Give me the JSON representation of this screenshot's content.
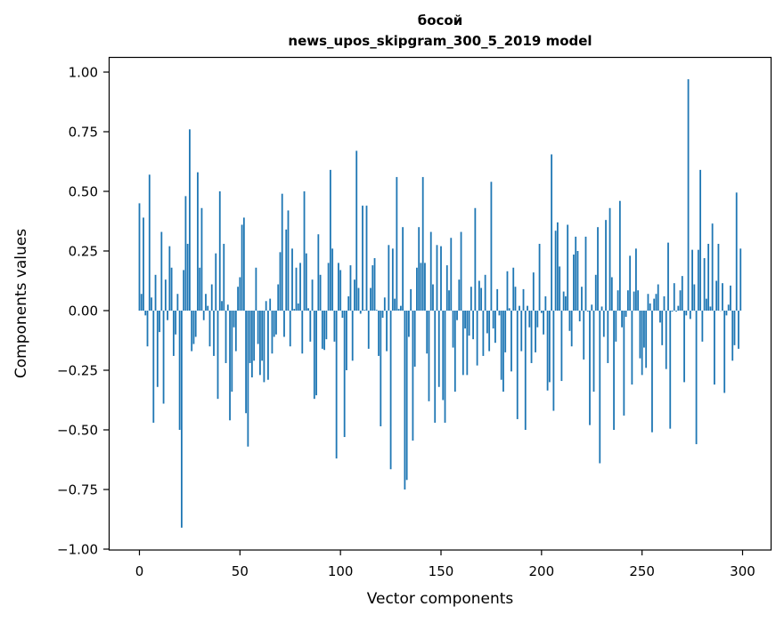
{
  "chart_data": {
    "type": "bar",
    "title": "босой",
    "subtitle": "news_upos_skipgram_300_5_2019 model",
    "xlabel": "Vector components",
    "ylabel": "Components values",
    "xlim": [
      -15,
      315
    ],
    "ylim": [
      -1.01,
      1.06
    ],
    "xticks": [
      0,
      50,
      100,
      150,
      200,
      250,
      300
    ],
    "xtick_labels": [
      "0",
      "50",
      "100",
      "150",
      "200",
      "250",
      "300"
    ],
    "yticks": [
      -1.0,
      -0.75,
      -0.5,
      -0.25,
      0.0,
      0.25,
      0.5,
      0.75,
      1.0
    ],
    "ytick_labels": [
      "−1.00",
      "−0.75",
      "−0.50",
      "−0.25",
      "0.00",
      "0.25",
      "0.50",
      "0.75",
      "1.00"
    ],
    "grid": false,
    "bar_color": "#1f77b4",
    "values": [
      0.45,
      0.07,
      0.39,
      -0.02,
      -0.15,
      0.57,
      0.055,
      -0.47,
      0.15,
      -0.32,
      -0.09,
      0.33,
      -0.39,
      0.13,
      -0.04,
      0.27,
      0.18,
      -0.19,
      -0.1,
      0.07,
      -0.5,
      -0.91,
      0.17,
      0.48,
      0.28,
      0.76,
      -0.17,
      -0.14,
      -0.11,
      0.58,
      0.18,
      0.43,
      -0.04,
      0.07,
      0.02,
      -0.15,
      0.11,
      -0.19,
      0.24,
      -0.37,
      0.5,
      0.04,
      0.28,
      -0.22,
      0.025,
      -0.46,
      -0.34,
      -0.07,
      -0.17,
      0.1,
      0.14,
      0.36,
      0.39,
      -0.43,
      -0.57,
      -0.22,
      -0.28,
      -0.21,
      0.18,
      -0.14,
      -0.27,
      -0.21,
      -0.3,
      0.04,
      -0.29,
      0.05,
      -0.18,
      -0.11,
      -0.1,
      0.11,
      0.245,
      0.49,
      -0.11,
      0.34,
      0.42,
      -0.15,
      0.26,
      0.007,
      0.18,
      0.03,
      0.2,
      -0.18,
      0.5,
      0.24,
      0.01,
      -0.13,
      0.13,
      -0.37,
      -0.355,
      0.32,
      0.15,
      -0.16,
      -0.165,
      -0.12,
      0.2,
      0.59,
      0.26,
      -0.13,
      -0.62,
      0.2,
      0.17,
      -0.03,
      -0.53,
      -0.25,
      0.06,
      0.19,
      -0.21,
      0.13,
      0.67,
      0.095,
      -0.013,
      0.44,
      0.003,
      0.44,
      -0.16,
      0.095,
      0.19,
      0.22,
      0.003,
      -0.19,
      -0.485,
      -0.03,
      0.055,
      -0.17,
      0.275,
      -0.665,
      0.26,
      0.05,
      0.56,
      0.007,
      0.02,
      0.35,
      -0.75,
      -0.71,
      -0.11,
      0.09,
      -0.545,
      -0.235,
      0.18,
      0.35,
      0.2,
      0.56,
      0.2,
      -0.18,
      -0.38,
      0.33,
      0.11,
      -0.47,
      0.275,
      -0.32,
      0.27,
      -0.375,
      -0.47,
      0.19,
      0.085,
      0.305,
      -0.155,
      -0.34,
      -0.04,
      0.13,
      0.33,
      -0.27,
      -0.075,
      -0.27,
      -0.105,
      0.1,
      -0.12,
      0.43,
      -0.23,
      0.125,
      0.095,
      -0.19,
      0.15,
      -0.095,
      -0.17,
      0.54,
      -0.075,
      -0.135,
      0.09,
      -0.02,
      -0.29,
      -0.34,
      -0.175,
      0.165,
      0.01,
      -0.255,
      0.18,
      0.1,
      -0.455,
      0.02,
      -0.17,
      0.09,
      -0.5,
      0.02,
      -0.07,
      -0.22,
      0.16,
      -0.175,
      -0.07,
      0.28,
      -0.01,
      -0.1,
      0.06,
      -0.335,
      -0.3,
      0.655,
      -0.42,
      0.335,
      0.37,
      0.185,
      -0.295,
      0.08,
      0.06,
      0.36,
      -0.085,
      -0.15,
      0.235,
      0.31,
      0.25,
      -0.045,
      0.1,
      -0.205,
      0.31,
      -0.004,
      -0.48,
      0.025,
      -0.34,
      0.15,
      0.35,
      -0.64,
      0.017,
      -0.11,
      0.38,
      -0.22,
      0.43,
      0.14,
      -0.5,
      -0.13,
      0.085,
      0.46,
      -0.07,
      -0.44,
      -0.026,
      0.085,
      0.23,
      -0.31,
      0.08,
      0.26,
      0.085,
      -0.2,
      -0.27,
      -0.155,
      -0.24,
      0.07,
      0.03,
      -0.51,
      0.05,
      0.07,
      0.11,
      -0.05,
      -0.145,
      0.06,
      -0.245,
      0.285,
      -0.495,
      -0.004,
      0.115,
      -0.004,
      0.02,
      0.085,
      0.145,
      -0.3,
      -0.02,
      0.97,
      -0.035,
      0.255,
      0.11,
      -0.56,
      0.255,
      0.59,
      -0.13,
      0.22,
      0.05,
      0.28,
      0.017,
      0.365,
      -0.31,
      0.125,
      0.28,
      0.0,
      0.115,
      -0.345,
      -0.02,
      0.025,
      0.105,
      -0.21,
      -0.145,
      0.495,
      -0.16,
      0.26
    ]
  }
}
